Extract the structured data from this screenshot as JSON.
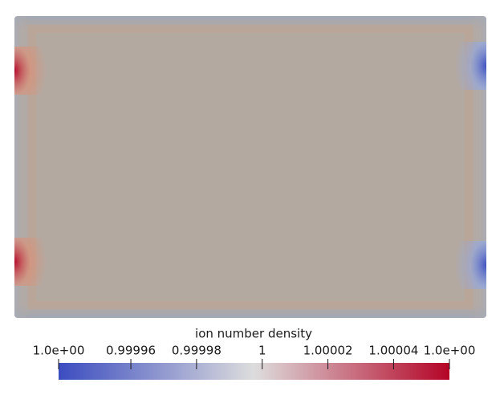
{
  "chart_data": {
    "type": "colorbar",
    "colorbar_label": "ion number density",
    "clim": [
      {
        "value": 0.999938,
        "label": "1.0e+00"
      },
      {
        "value": 1.000057,
        "label": "1.0e+00"
      }
    ],
    "cticks": [
      0.99996,
      0.99998,
      1,
      1.00002,
      1.00004
    ],
    "colormap": [
      "#3b4cc0",
      "#dddddd",
      "#b40426"
    ]
  }
}
